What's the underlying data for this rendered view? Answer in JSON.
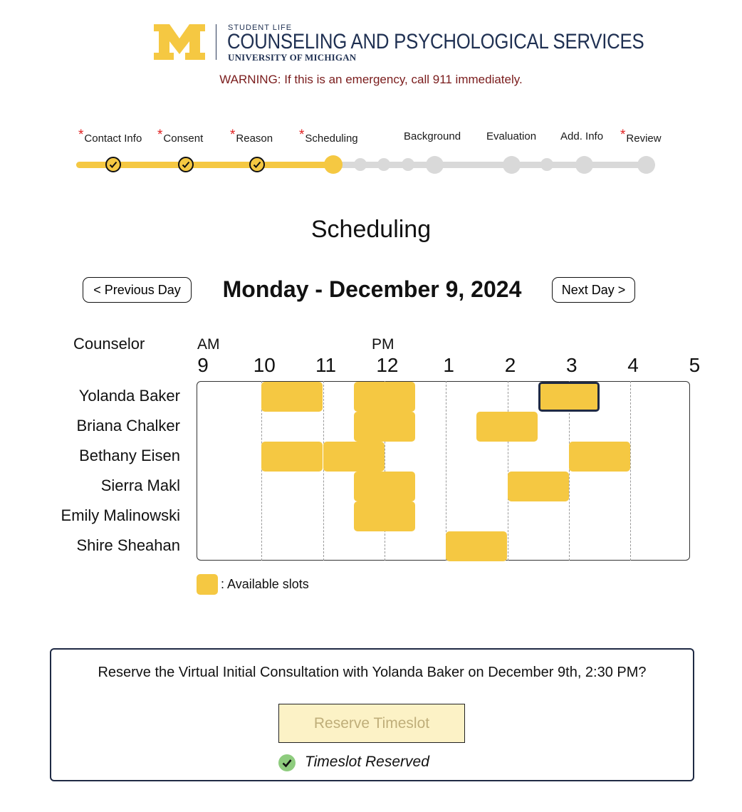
{
  "header": {
    "logo_letter": "M",
    "student_life": "STUDENT LIFE",
    "title": "COUNSELING AND PSYCHOLOGICAL SERVICES",
    "university": "UNIVERSITY OF MICHIGAN",
    "warning": "WARNING: If this is an emergency, call 911 immediately."
  },
  "progress": {
    "steps": [
      {
        "label": "Contact Info",
        "required_mark": "*",
        "status": "complete"
      },
      {
        "label": "Consent",
        "required_mark": "*",
        "status": "complete"
      },
      {
        "label": "Reason",
        "required_mark": "*",
        "status": "complete"
      },
      {
        "label": "Scheduling",
        "required_mark": "*",
        "status": "current"
      },
      {
        "label": "Background",
        "required_mark": "",
        "status": "pending"
      },
      {
        "label": "Evaluation",
        "required_mark": "",
        "status": "pending"
      },
      {
        "label": "Add. Info",
        "required_mark": "",
        "status": "pending"
      },
      {
        "label": "Review",
        "required_mark": "*",
        "status": "pending"
      }
    ]
  },
  "page_title": "Scheduling",
  "day_nav": {
    "prev_label": "< Previous Day",
    "next_label": "Next Day >",
    "date": "Monday - December 9, 2024"
  },
  "schedule": {
    "counselor_header": "Counselor",
    "am_label": "AM",
    "pm_label": "PM",
    "hours": [
      "9",
      "10",
      "11",
      "12",
      "1",
      "2",
      "3",
      "4",
      "5"
    ],
    "counselors": [
      {
        "name": "Yolanda Baker",
        "slots": [
          [
            10,
            11
          ],
          [
            11.5,
            12.5
          ],
          [
            14.5,
            15.5
          ]
        ],
        "selected": [
          14.5,
          15.5
        ]
      },
      {
        "name": "Briana Chalker",
        "slots": [
          [
            11.5,
            12.5
          ],
          [
            13.5,
            14.5
          ]
        ]
      },
      {
        "name": "Bethany Eisen",
        "slots": [
          [
            10,
            11
          ],
          [
            11,
            12
          ],
          [
            15,
            16
          ]
        ]
      },
      {
        "name": "Sierra Makl",
        "slots": [
          [
            11.5,
            12.5
          ],
          [
            14,
            15
          ]
        ]
      },
      {
        "name": "Emily Malinowski",
        "slots": [
          [
            11.5,
            12.5
          ]
        ]
      },
      {
        "name": "Shire Sheahan",
        "slots": [
          [
            13,
            14
          ]
        ]
      }
    ]
  },
  "legend": {
    "label": ": Available slots"
  },
  "confirmation": {
    "question": "Reserve the Virtual Initial Consultation with Yolanda Baker on December 9th, 2:30 PM?",
    "button_label": "Reserve Timeslot",
    "status_text": "Timeslot Reserved"
  },
  "colors": {
    "accent": "#f5c842",
    "navy": "#1f2a44",
    "warning": "#7a1c1c",
    "required": "#e02020",
    "success": "#8ecc7e"
  }
}
